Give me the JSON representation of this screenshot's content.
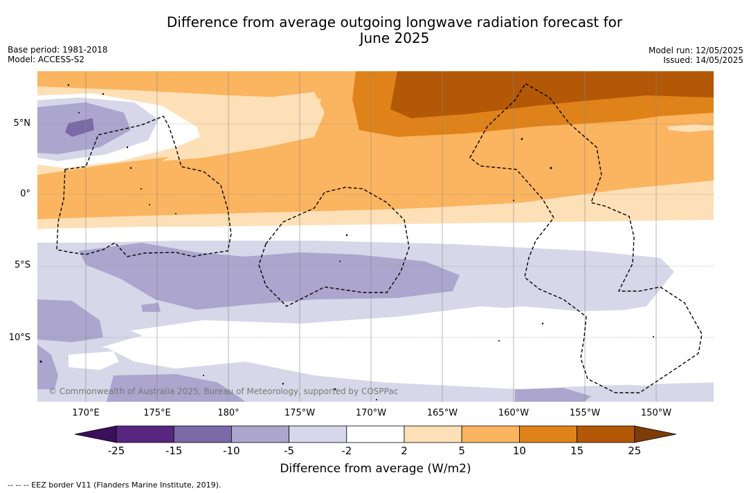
{
  "title": "Difference from average outgoing longwave radiation forecast for June 2025",
  "title_line1": "Difference from average outgoing longwave radiation forecast for",
  "title_line2": "June 2025",
  "base_period": "Base period: 1981-2018",
  "model": "Model: ACCESS-S2",
  "model_run": "Model run: 12/05/2025",
  "issued": "Issued: 14/05/2025",
  "copyright": "© Commonwealth of Australia 2025, Bureau of Meteorology, supported by COSPPac",
  "lat_labels": [
    "5°N",
    "0°",
    "5°S",
    "10°S"
  ],
  "lon_labels": [
    "170°E",
    "175°E",
    "180°",
    "175°W",
    "170°W",
    "165°W",
    "160°W",
    "155°W",
    "150°W"
  ],
  "colorbar": {
    "label": "Difference from average (W/m2)",
    "ticks": [
      "-25",
      "-15",
      "-10",
      "-5",
      "-2",
      "2",
      "5",
      "10",
      "15",
      "25"
    ],
    "colors": [
      "#3b0f5c",
      "#58267f",
      "#7a6aa6",
      "#aca5cd",
      "#d7d7e9",
      "#ffffff",
      "#fde0b7",
      "#fbb45f",
      "#e0821a",
      "#b35806",
      "#7f3b08"
    ]
  },
  "legend": "-- -- -- EEZ border V11 (Flanders Marine Institute, 2019)."
}
